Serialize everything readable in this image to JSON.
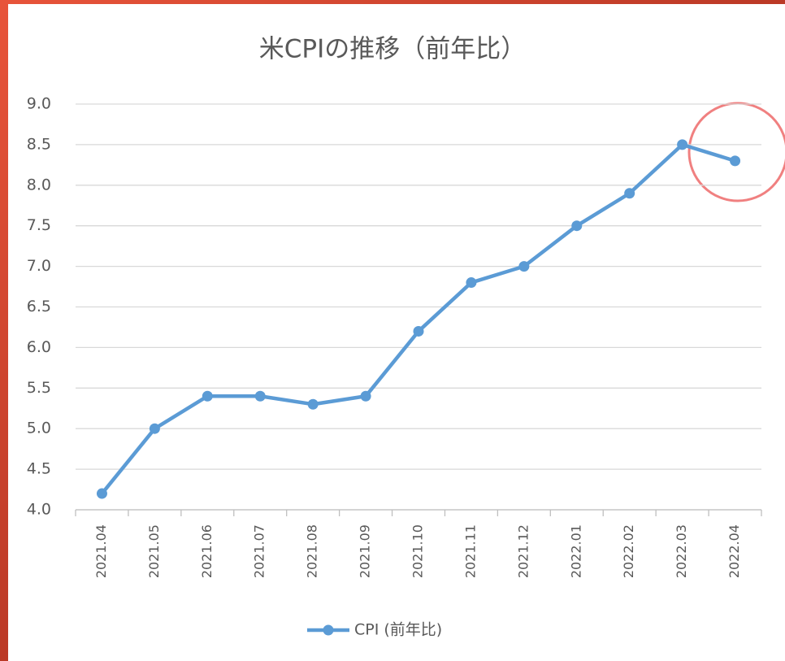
{
  "chart_data": {
    "type": "line",
    "title": "米CPIの推移（前年比）",
    "categories": [
      "2021.04",
      "2021.05",
      "2021.06",
      "2021.07",
      "2021.08",
      "2021.09",
      "2021.10",
      "2021.11",
      "2021.12",
      "2022.01",
      "2022.02",
      "2022.03",
      "2022.04"
    ],
    "series": [
      {
        "name": "CPI (前年比)",
        "color": "#5b9bd5",
        "values": [
          4.2,
          5.0,
          5.4,
          5.4,
          5.3,
          5.4,
          6.2,
          6.8,
          7.0,
          7.5,
          7.9,
          8.5,
          8.3
        ]
      }
    ],
    "ylim": [
      4,
      9
    ],
    "yticks": [
      {
        "value": 4,
        "label": "4.0"
      },
      {
        "value": 4.5,
        "label": "4.5"
      },
      {
        "value": 5,
        "label": "5.0"
      },
      {
        "value": 5.5,
        "label": "5.5"
      },
      {
        "value": 6,
        "label": "6.0"
      },
      {
        "value": 6.5,
        "label": "6.5"
      },
      {
        "value": 7,
        "label": "7.0"
      },
      {
        "value": 7.5,
        "label": "7.5"
      },
      {
        "value": 8,
        "label": "8.0"
      },
      {
        "value": 8.5,
        "label": "8.5"
      },
      {
        "value": 9,
        "label": "9.0"
      }
    ],
    "grid": true,
    "legend": "bottom"
  }
}
